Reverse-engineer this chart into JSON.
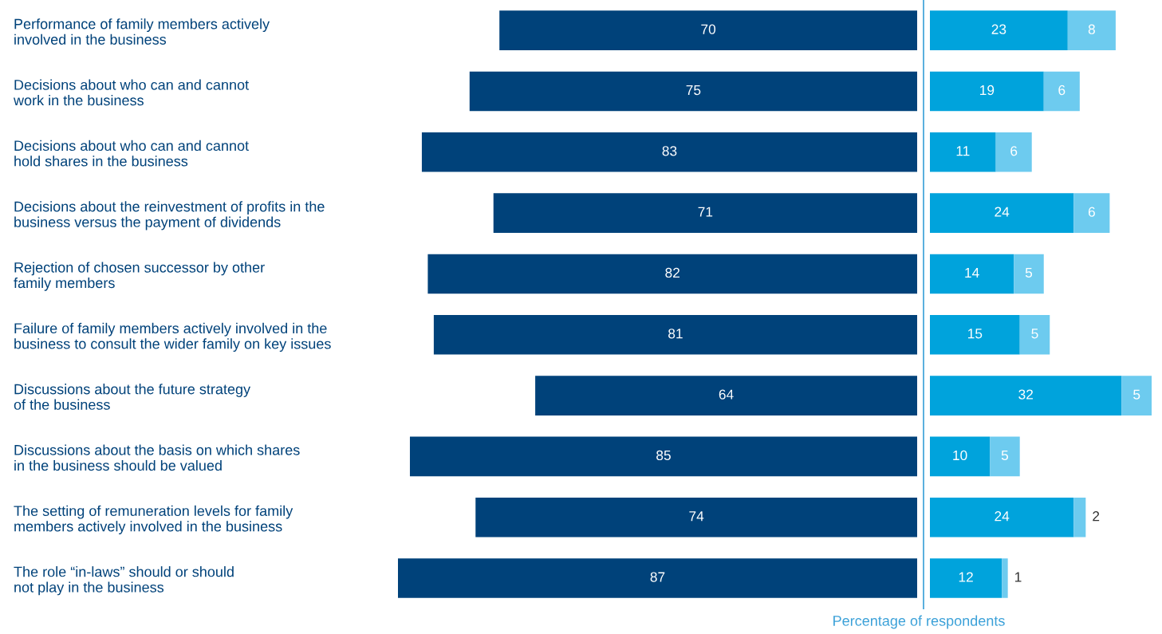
{
  "chart_data": [
    {
      "type": "bar",
      "orientation": "horizontal",
      "tick_labels": "y",
      "data_labels": true,
      "categories": [
        "Performance of family members actively\ninvolved in the business",
        "Decisions about who can and cannot\nwork in the business",
        "Decisions about who can and cannot\nhold shares in the business",
        "Decisions about the reinvestment of profits in the\nbusiness versus the payment of dividends",
        "Rejection of chosen successor by other\nfamily members",
        "Failure of family members actively involved in the\nbusiness to consult the wider family on key issues",
        "Discussions about the future strategy\nof the business",
        "Discussions about the basis on which shares\nin the business should be valued",
        "The setting of remuneration levels for family\nmembers actively involved in the business",
        "The role “in-laws” should or should\nnot play in the business"
      ],
      "series": [
        {
          "color": "#00427a",
          "values": [
            70,
            75,
            83,
            71,
            82,
            81,
            64,
            85,
            74,
            87
          ]
        }
      ],
      "xlim": [
        87,
        0
      ]
    },
    {
      "type": "bar",
      "orientation": "horizontal",
      "stacked": true,
      "tick_labels": false,
      "data_labels": true,
      "categories": [
        null,
        null,
        null,
        null,
        null,
        null,
        null,
        null,
        null,
        null
      ],
      "series": [
        {
          "color": "#00a3dc",
          "values": [
            23,
            19,
            11,
            24,
            14,
            15,
            32,
            10,
            24,
            12
          ]
        },
        {
          "color": "#6dcbef",
          "values": [
            8,
            6,
            6,
            6,
            5,
            5,
            5,
            5,
            2,
            1
          ]
        }
      ],
      "xlim": [
        0,
        37
      ],
      "xlabel": "Percentage of respondents"
    }
  ]
}
